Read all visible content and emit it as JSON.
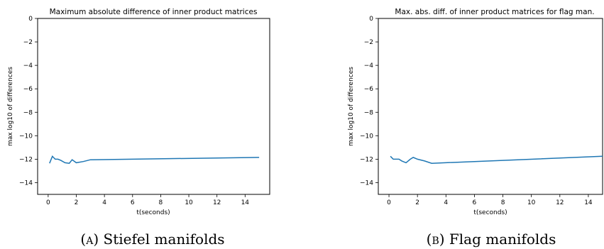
{
  "chart_data": [
    {
      "type": "line",
      "title": "Maximum absolute difference of inner product matrices",
      "xlabel": "t(seconds)",
      "ylabel": "max log10 of differences",
      "xlim": [
        -0.75,
        15.75
      ],
      "ylim": [
        -15,
        0
      ],
      "xticks": [
        0,
        2,
        4,
        6,
        8,
        10,
        12,
        14
      ],
      "yticks": [
        0,
        -2,
        -4,
        -6,
        -8,
        -10,
        -12,
        -14
      ],
      "grid": false,
      "series_color": "#1f77b4",
      "series": [
        {
          "x": [
            0.1,
            0.3,
            0.5,
            0.7,
            0.9,
            1.2,
            1.5,
            1.7,
            2.0,
            2.5,
            3.0,
            15.0
          ],
          "y": [
            -12.35,
            -11.75,
            -12.0,
            -12.0,
            -12.1,
            -12.3,
            -12.35,
            -12.05,
            -12.3,
            -12.2,
            -12.05,
            -11.85
          ]
        }
      ],
      "caption": "(a) Stiefel manifolds"
    },
    {
      "type": "line",
      "title": "Max. abs. diff. of inner product matrices for flag man.",
      "xlabel": "t(seconds)",
      "ylabel": "max log10 of differences",
      "xlim": [
        -0.75,
        15.0
      ],
      "ylim": [
        -15,
        0
      ],
      "xticks": [
        0,
        2,
        4,
        6,
        8,
        10,
        12,
        14
      ],
      "yticks": [
        0,
        -2,
        -4,
        -6,
        -8,
        -10,
        -12,
        -14
      ],
      "grid": false,
      "series_color": "#1f77b4",
      "series": [
        {
          "x": [
            0.1,
            0.3,
            0.5,
            0.7,
            0.9,
            1.2,
            1.5,
            1.7,
            2.0,
            2.5,
            3.0,
            15.0
          ],
          "y": [
            -11.75,
            -12.0,
            -12.0,
            -12.0,
            -12.15,
            -12.3,
            -12.0,
            -11.85,
            -12.0,
            -12.15,
            -12.35,
            -11.75
          ]
        }
      ],
      "caption": "(b) Flag manifolds"
    }
  ]
}
